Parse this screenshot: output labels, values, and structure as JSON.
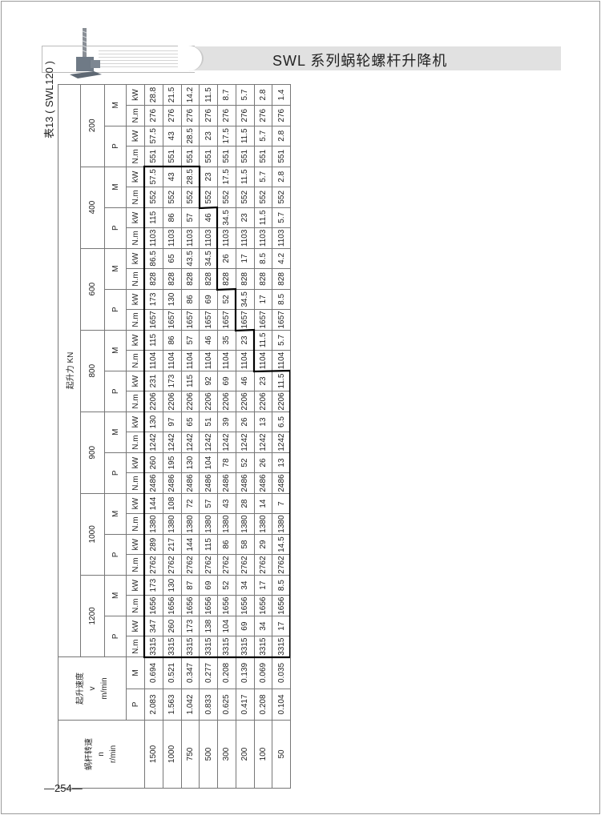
{
  "header": {
    "title": "SWL 系列蜗轮螺杆升降机"
  },
  "table_title": "表13 ( SWL120 )",
  "page_number": "—254—",
  "table": {
    "speed_header": [
      "蜗杆转速",
      "n",
      "r/min"
    ],
    "velocity_header": [
      "起升速度",
      "v",
      "m/min"
    ],
    "force_header": "起升力 KN",
    "loads": [
      "1200",
      "1000",
      "900",
      "800",
      "600",
      "400",
      "200"
    ],
    "pm": [
      "P",
      "M"
    ],
    "units": [
      "N.m",
      "kW"
    ],
    "rows": [
      {
        "n": "1500",
        "v": [
          "2.083",
          "0.694"
        ],
        "vals": [
          [
            "3315",
            "347",
            "1656",
            "173"
          ],
          [
            "2762",
            "289",
            "1380",
            "144"
          ],
          [
            "2486",
            "260",
            "1242",
            "130"
          ],
          [
            "2206",
            "231",
            "1104",
            "115"
          ],
          [
            "1657",
            "173",
            "828",
            "86.5"
          ],
          [
            "1103",
            "115",
            "552",
            "57.5"
          ],
          [
            "551",
            "57.5",
            "276",
            "28.8"
          ]
        ]
      },
      {
        "n": "1000",
        "v": [
          "1.563",
          "0.521"
        ],
        "vals": [
          [
            "3315",
            "260",
            "1656",
            "130"
          ],
          [
            "2762",
            "217",
            "1380",
            "108"
          ],
          [
            "2486",
            "195",
            "1242",
            "97"
          ],
          [
            "2206",
            "173",
            "1104",
            "86"
          ],
          [
            "1657",
            "130",
            "828",
            "65"
          ],
          [
            "1103",
            "86",
            "552",
            "43"
          ],
          [
            "551",
            "43",
            "276",
            "21.5"
          ]
        ]
      },
      {
        "n": "750",
        "v": [
          "1.042",
          "0.347"
        ],
        "vals": [
          [
            "3315",
            "173",
            "1656",
            "87"
          ],
          [
            "2762",
            "144",
            "1380",
            "72"
          ],
          [
            "2486",
            "130",
            "1242",
            "65"
          ],
          [
            "2206",
            "115",
            "1104",
            "57"
          ],
          [
            "1657",
            "86",
            "828",
            "43.5"
          ],
          [
            "1103",
            "57",
            "552",
            "28.5"
          ],
          [
            "551",
            "28.5",
            "276",
            "14.2"
          ]
        ]
      },
      {
        "n": "500",
        "v": [
          "0.833",
          "0.277"
        ],
        "vals": [
          [
            "3315",
            "138",
            "1656",
            "69"
          ],
          [
            "2762",
            "115",
            "1380",
            "57"
          ],
          [
            "2486",
            "104",
            "1242",
            "51"
          ],
          [
            "2206",
            "92",
            "1104",
            "46"
          ],
          [
            "1657",
            "69",
            "828",
            "34.5"
          ],
          [
            "1103",
            "46",
            "552",
            "23"
          ],
          [
            "551",
            "23",
            "276",
            "11.5"
          ]
        ]
      },
      {
        "n": "300",
        "v": [
          "0.625",
          "0.208"
        ],
        "vals": [
          [
            "3315",
            "104",
            "1656",
            "52"
          ],
          [
            "2762",
            "86",
            "1380",
            "43"
          ],
          [
            "2486",
            "78",
            "1242",
            "39"
          ],
          [
            "2206",
            "69",
            "1104",
            "35"
          ],
          [
            "1657",
            "52",
            "828",
            "26"
          ],
          [
            "1103",
            "34.5",
            "552",
            "17.5"
          ],
          [
            "551",
            "17.5",
            "276",
            "8.7"
          ]
        ]
      },
      {
        "n": "200",
        "v": [
          "0.417",
          "0.139"
        ],
        "vals": [
          [
            "3315",
            "69",
            "1656",
            "34"
          ],
          [
            "2762",
            "58",
            "1380",
            "28"
          ],
          [
            "2486",
            "52",
            "1242",
            "26"
          ],
          [
            "2206",
            "46",
            "1104",
            "23"
          ],
          [
            "1657",
            "34.5",
            "828",
            "17"
          ],
          [
            "1103",
            "23",
            "552",
            "11.5"
          ],
          [
            "551",
            "11.5",
            "276",
            "5.7"
          ]
        ]
      },
      {
        "n": "100",
        "v": [
          "0.208",
          "0.069"
        ],
        "vals": [
          [
            "3315",
            "34",
            "1656",
            "17"
          ],
          [
            "2762",
            "29",
            "1380",
            "14"
          ],
          [
            "2486",
            "26",
            "1242",
            "13"
          ],
          [
            "2206",
            "23",
            "1104",
            "11.5"
          ],
          [
            "1657",
            "17",
            "828",
            "8.5"
          ],
          [
            "1103",
            "11.5",
            "552",
            "5.7"
          ],
          [
            "551",
            "5.7",
            "276",
            "2.8"
          ]
        ]
      },
      {
        "n": "50",
        "v": [
          "0.104",
          "0.035"
        ],
        "vals": [
          [
            "3315",
            "17",
            "1656",
            "8.5"
          ],
          [
            "2762",
            "14.5",
            "1380",
            "7"
          ],
          [
            "2486",
            "13",
            "1242",
            "6.5"
          ],
          [
            "2206",
            "11.5",
            "1104",
            "5.7"
          ],
          [
            "1657",
            "8.5",
            "828",
            "4.2"
          ],
          [
            "1103",
            "5.7",
            "552",
            "2.8"
          ],
          [
            "551",
            "2.8",
            "276",
            "1.4"
          ]
        ]
      }
    ]
  },
  "colors": {
    "band": "#e1e1e1",
    "border": "#777777",
    "highlight": "#000000"
  }
}
